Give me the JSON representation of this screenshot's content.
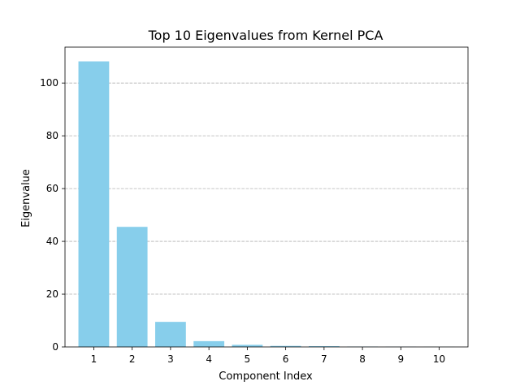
{
  "chart_data": {
    "type": "bar",
    "title": "Top 10 Eigenvalues from Kernel PCA",
    "xlabel": "Component Index",
    "ylabel": "Eigenvalue",
    "categories": [
      "1",
      "2",
      "3",
      "4",
      "5",
      "6",
      "7",
      "8",
      "9",
      "10"
    ],
    "values": [
      108.2,
      45.5,
      9.5,
      2.2,
      0.8,
      0.4,
      0.3,
      0.15,
      0.08,
      0.05
    ],
    "ylim": [
      0,
      113.6
    ],
    "yticks": [
      0,
      20,
      40,
      60,
      80,
      100
    ],
    "y_grid": true,
    "x_grid": false,
    "bar_color": "#87ceeb"
  }
}
